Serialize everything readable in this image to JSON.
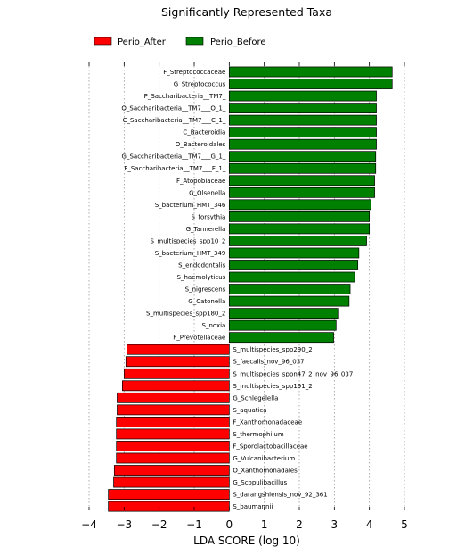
{
  "chart_data": {
    "type": "bar",
    "orientation": "horizontal",
    "title": "Significantly Represented Taxa",
    "xlabel": "LDA SCORE (log 10)",
    "ylabel": "",
    "xlim": [
      -4,
      5
    ],
    "xticks": [
      "−4",
      "−3",
      "−2",
      "−1",
      "0",
      "1",
      "2",
      "3",
      "4",
      "5"
    ],
    "grid": "vertical dotted",
    "legend_position": "top-left",
    "series": [
      {
        "name": "Perio_After",
        "color": "#ff0000"
      },
      {
        "name": "Perio_Before",
        "color": "#008000"
      }
    ],
    "bars": [
      {
        "label": "F_Streptococcaceae",
        "value": 4.65,
        "series": "Perio_Before"
      },
      {
        "label": "G_Streptococcus",
        "value": 4.65,
        "series": "Perio_Before"
      },
      {
        "label": "P_Saccharibacteria__TM7_",
        "value": 4.2,
        "series": "Perio_Before"
      },
      {
        "label": "O_Saccharibacteria__TM7___O_1_",
        "value": 4.2,
        "series": "Perio_Before"
      },
      {
        "label": "C_Saccharibacteria__TM7___C_1_",
        "value": 4.2,
        "series": "Perio_Before"
      },
      {
        "label": "C_Bacteroidia",
        "value": 4.2,
        "series": "Perio_Before"
      },
      {
        "label": "O_Bacteroidales",
        "value": 4.2,
        "series": "Perio_Before"
      },
      {
        "label": "G_Saccharibacteria__TM7___G_1_",
        "value": 4.18,
        "series": "Perio_Before"
      },
      {
        "label": "F_Saccharibacteria__TM7___F_1_",
        "value": 4.18,
        "series": "Perio_Before"
      },
      {
        "label": "F_Atopobiaceae",
        "value": 4.15,
        "series": "Perio_Before"
      },
      {
        "label": "G_Olsenella",
        "value": 4.15,
        "series": "Perio_Before"
      },
      {
        "label": "S_bacterium_HMT_346",
        "value": 4.05,
        "series": "Perio_Before"
      },
      {
        "label": "S_forsythia",
        "value": 4.0,
        "series": "Perio_Before"
      },
      {
        "label": "G_Tannerella",
        "value": 4.0,
        "series": "Perio_Before"
      },
      {
        "label": "S_multispecies_spp10_2",
        "value": 3.92,
        "series": "Perio_Before"
      },
      {
        "label": "S_bacterium_HMT_349",
        "value": 3.7,
        "series": "Perio_Before"
      },
      {
        "label": "S_endodontalis",
        "value": 3.67,
        "series": "Perio_Before"
      },
      {
        "label": "S_haemolyticus",
        "value": 3.58,
        "series": "Perio_Before"
      },
      {
        "label": "S_nigrescens",
        "value": 3.45,
        "series": "Perio_Before"
      },
      {
        "label": "G_Catonella",
        "value": 3.42,
        "series": "Perio_Before"
      },
      {
        "label": "S_multispecies_spp180_2",
        "value": 3.1,
        "series": "Perio_Before"
      },
      {
        "label": "S_noxia",
        "value": 3.05,
        "series": "Perio_Before"
      },
      {
        "label": "F_Prevotellaceae",
        "value": 2.98,
        "series": "Perio_Before"
      },
      {
        "label": "S_multispecies_spp290_2",
        "value": -2.92,
        "series": "Perio_After"
      },
      {
        "label": "S_faecalis_nov_96_037",
        "value": -2.95,
        "series": "Perio_After"
      },
      {
        "label": "S_multispecies_sppn47_2_nov_96_037",
        "value": -3.0,
        "series": "Perio_After"
      },
      {
        "label": "S_multispecies_spp191_2",
        "value": -3.05,
        "series": "Perio_After"
      },
      {
        "label": "G_Schlegelella",
        "value": -3.2,
        "series": "Perio_After"
      },
      {
        "label": "S_aquatica",
        "value": -3.2,
        "series": "Perio_After"
      },
      {
        "label": "F_Xanthomonadaceae",
        "value": -3.22,
        "series": "Perio_After"
      },
      {
        "label": "S_thermophilum",
        "value": -3.22,
        "series": "Perio_After"
      },
      {
        "label": "F_Sporolactobacillaceae",
        "value": -3.22,
        "series": "Perio_After"
      },
      {
        "label": "G_Vulcanibacterium",
        "value": -3.22,
        "series": "Perio_After"
      },
      {
        "label": "O_Xanthomonadales",
        "value": -3.28,
        "series": "Perio_After"
      },
      {
        "label": "G_Scopulibacillus",
        "value": -3.3,
        "series": "Perio_After"
      },
      {
        "label": "S_darangshiensis_nov_92_361",
        "value": -3.45,
        "series": "Perio_After"
      },
      {
        "label": "S_baumannii",
        "value": -3.45,
        "series": "Perio_After"
      }
    ]
  }
}
